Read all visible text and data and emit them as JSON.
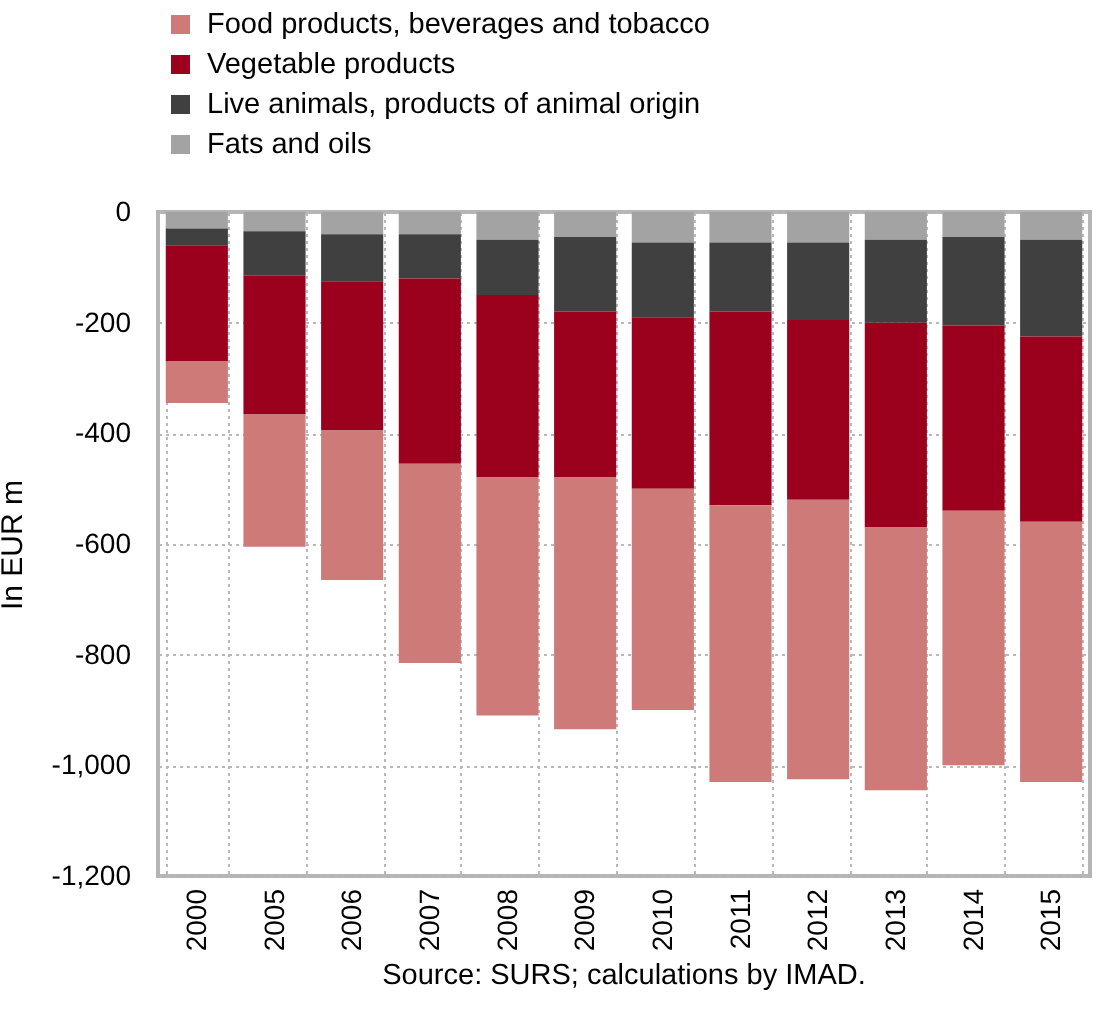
{
  "chart_data": {
    "type": "bar",
    "stacked": true,
    "ylabel": "In EUR m",
    "categories": [
      "2000",
      "2005",
      "2006",
      "2007",
      "2008",
      "2009",
      "2010",
      "2011",
      "2012",
      "2013",
      "2014",
      "2015"
    ],
    "series": [
      {
        "name": "Fats and oils",
        "color": "#a3a3a3",
        "values": [
          -30,
          -35,
          -40,
          -40,
          -50,
          -45,
          -55,
          -55,
          -55,
          -50,
          -45,
          -50
        ]
      },
      {
        "name": "Live animals, products of animal origin",
        "color": "#404040",
        "values": [
          -30,
          -80,
          -85,
          -80,
          -100,
          -135,
          -135,
          -125,
          -140,
          -150,
          -160,
          -175
        ]
      },
      {
        "name": "Vegetable products",
        "color": "#9b001c",
        "values": [
          -210,
          -250,
          -270,
          -335,
          -330,
          -300,
          -310,
          -350,
          -325,
          -370,
          -335,
          -335
        ]
      },
      {
        "name": "Food products, beverages and tobacco",
        "color": "#cd7a78",
        "values": [
          -75,
          -240,
          -270,
          -360,
          -430,
          -455,
          -400,
          -500,
          -505,
          -475,
          -460,
          -470
        ]
      }
    ],
    "ylim": [
      -1200,
      0
    ],
    "yticks": [
      0,
      -200,
      -400,
      -600,
      -800,
      {
        "value": -1000,
        "label": "-1,000"
      },
      {
        "value": -1200,
        "label": "-1,200"
      }
    ],
    "grid": true,
    "legend": "top left",
    "annotations": [
      "Source: SURS; calculations by IMAD."
    ]
  }
}
